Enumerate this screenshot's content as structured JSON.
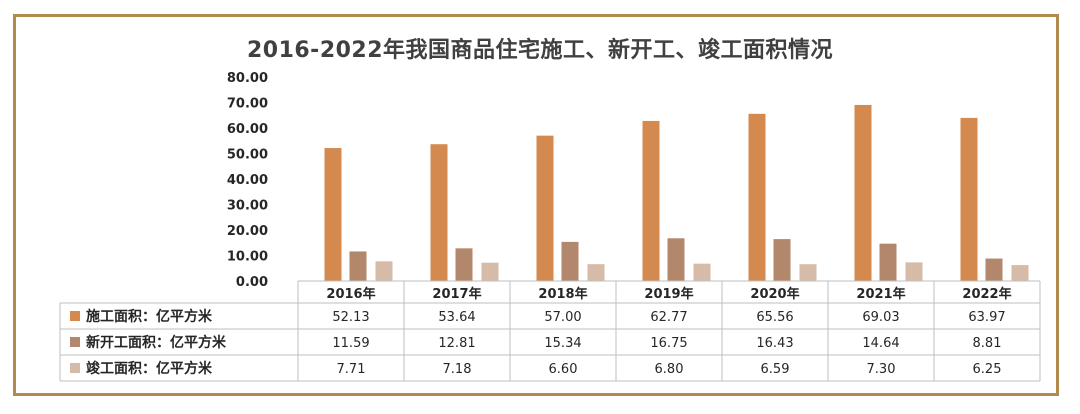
{
  "chart_data": {
    "type": "bar",
    "title": "2016-2022年我国商品住宅施工、新开工、竣工面积情况",
    "categories": [
      "2016年",
      "2017年",
      "2018年",
      "2019年",
      "2020年",
      "2021年",
      "2022年"
    ],
    "series": [
      {
        "name": "施工面积：亿平方米",
        "color": "#d4894f",
        "values": [
          52.13,
          53.64,
          57.0,
          62.77,
          65.56,
          69.03,
          63.97
        ],
        "labels": [
          "52.13",
          "53.64",
          "57.00",
          "62.77",
          "65.56",
          "69.03",
          "63.97"
        ]
      },
      {
        "name": "新开工面积：亿平方米",
        "color": "#b3876b",
        "values": [
          11.59,
          12.81,
          15.34,
          16.75,
          16.43,
          14.64,
          8.81
        ],
        "labels": [
          "11.59",
          "12.81",
          "15.34",
          "16.75",
          "16.43",
          "14.64",
          "8.81"
        ]
      },
      {
        "name": "竣工面积：亿平方米",
        "color": "#d6bba9",
        "values": [
          7.71,
          7.18,
          6.6,
          6.8,
          6.59,
          7.3,
          6.25
        ],
        "labels": [
          "7.71",
          "7.18",
          "6.60",
          "6.80",
          "6.59",
          "7.30",
          "6.25"
        ]
      }
    ],
    "ylim": [
      0,
      80
    ],
    "yticks": [
      "0.00",
      "10.00",
      "20.00",
      "30.00",
      "40.00",
      "50.00",
      "60.00",
      "70.00",
      "80.00"
    ],
    "grid": false,
    "legend": "data-table"
  }
}
